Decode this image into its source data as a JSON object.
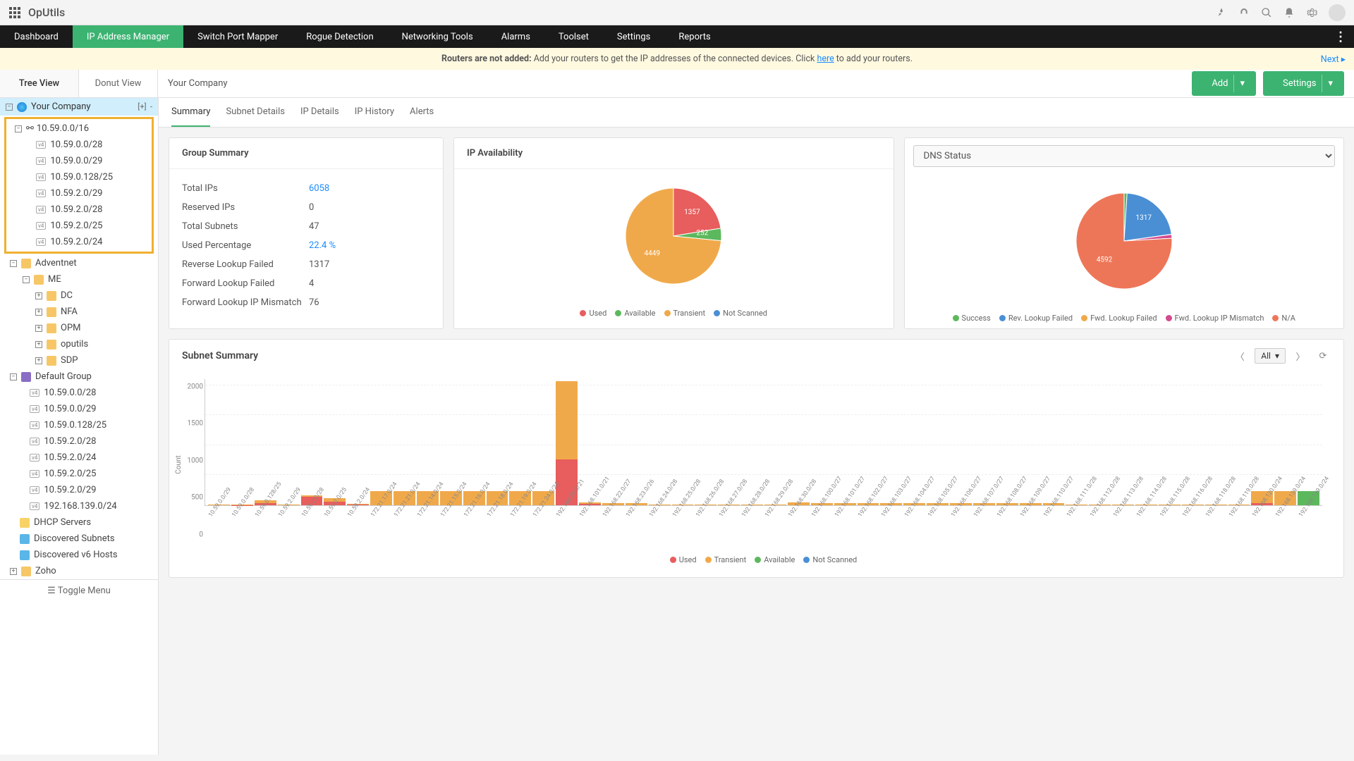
{
  "app": {
    "name": "OpUtils"
  },
  "nav": {
    "items": [
      "Dashboard",
      "IP Address Manager",
      "Switch Port Mapper",
      "Rogue Detection",
      "Networking Tools",
      "Alarms",
      "Toolset",
      "Settings",
      "Reports"
    ],
    "active": 1
  },
  "alert": {
    "bold": "Routers are not added:",
    "text": " Add your routers to get the IP addresses of the connected devices. Click ",
    "link": "here",
    "tail": " to add your routers.",
    "next": "Next"
  },
  "views": {
    "tree": "Tree View",
    "donut": "Donut View",
    "active": "tree"
  },
  "breadcrumb": "Your Company",
  "actions": {
    "add": "Add",
    "settings": "Settings"
  },
  "subtabs": {
    "items": [
      "Summary",
      "Subnet Details",
      "IP Details",
      "IP History",
      "Alerts"
    ],
    "active": 0
  },
  "tree": {
    "root": "Your Company",
    "expand": "[+]",
    "collapse": "-",
    "highlighted": {
      "parent": "10.59.0.0/16",
      "children": [
        "10.59.0.0/28",
        "10.59.0.0/29",
        "10.59.0.128/25",
        "10.59.2.0/29",
        "10.59.2.0/28",
        "10.59.2.0/25",
        "10.59.2.0/24"
      ]
    },
    "adventnet": "Adventnet",
    "me": "ME",
    "me_children": [
      "DC",
      "NFA",
      "OPM",
      "oputils",
      "SDP"
    ],
    "default_group": "Default Group",
    "default_children": [
      "10.59.0.0/28",
      "10.59.0.0/29",
      "10.59.0.128/25",
      "10.59.2.0/28",
      "10.59.2.0/24",
      "10.59.2.0/25",
      "10.59.2.0/29",
      "192.168.139.0/24"
    ],
    "dhcp": "DHCP Servers",
    "disc_subnets": "Discovered Subnets",
    "disc_v6": "Discovered v6 Hosts",
    "zoho": "Zoho",
    "toggle": "Toggle Menu"
  },
  "group_summary": {
    "title": "Group Summary",
    "rows": [
      {
        "k": "Total IPs",
        "v": "6058",
        "link": true
      },
      {
        "k": "Reserved IPs",
        "v": "0"
      },
      {
        "k": "Total Subnets",
        "v": "47"
      },
      {
        "k": "Used Percentage",
        "v": "22.4 %",
        "link": true
      },
      {
        "k": "Reverse Lookup Failed",
        "v": "1317"
      },
      {
        "k": "Forward Lookup Failed",
        "v": "4"
      },
      {
        "k": "Forward Lookup IP Mismatch",
        "v": "76"
      }
    ]
  },
  "ip_avail": {
    "title": "IP Availability",
    "data": [
      {
        "label": "Used",
        "value": 1357,
        "color": "#e85d5d"
      },
      {
        "label": "Available",
        "value": 252,
        "color": "#5cb85c"
      },
      {
        "label": "Transient",
        "value": 4449,
        "color": "#f0a94a"
      },
      {
        "label": "Not Scanned",
        "value": 0,
        "color": "#4a8fd4"
      }
    ]
  },
  "dns": {
    "title": "DNS Status",
    "data": [
      {
        "label": "Success",
        "value": 60,
        "color": "#5cb85c"
      },
      {
        "label": "Rev. Lookup Failed",
        "value": 1317,
        "color": "#4a8fd4"
      },
      {
        "label": "Fwd. Lookup Failed",
        "value": 4,
        "color": "#f0a94a"
      },
      {
        "label": "Fwd. Lookup IP Mismatch",
        "value": 76,
        "color": "#d44a8f"
      },
      {
        "label": "N/A",
        "value": 4592,
        "color": "#ee7658"
      }
    ]
  },
  "subnet_summary": {
    "title": "Subnet Summary",
    "filter": "All",
    "ylabel": "Count",
    "ymax": 2100,
    "yticks": [
      0,
      500,
      1000,
      1500,
      2000
    ],
    "colors": {
      "used": "#e85d5d",
      "transient": "#f0a94a",
      "available": "#5cb85c",
      "not_scanned": "#4a8fd4"
    },
    "legend": [
      "Used",
      "Transient",
      "Available",
      "Not Scanned"
    ],
    "bars": [
      {
        "x": "10.59.0.0/29",
        "used": 0,
        "trans": 8,
        "avail": 0
      },
      {
        "x": "10.59.0.0/28",
        "used": 5,
        "trans": 10,
        "avail": 0
      },
      {
        "x": "10.59.0.128/25",
        "used": 35,
        "trans": 50,
        "avail": 0
      },
      {
        "x": "10.59.2.0/29",
        "used": 0,
        "trans": 8,
        "avail": 0
      },
      {
        "x": "10.59.2.0/28",
        "used": 140,
        "trans": 30,
        "avail": 0
      },
      {
        "x": "10.59.2.0/25",
        "used": 60,
        "trans": 60,
        "avail": 0
      },
      {
        "x": "10.59.2.0/24",
        "used": 10,
        "trans": 10,
        "avail": 0
      },
      {
        "x": "172.21.17.0/24",
        "used": 0,
        "trans": 230,
        "avail": 0
      },
      {
        "x": "172.21.21.0/24",
        "used": 0,
        "trans": 230,
        "avail": 0
      },
      {
        "x": "172.21.14.0/24",
        "used": 0,
        "trans": 230,
        "avail": 0
      },
      {
        "x": "172.21.15.0/24",
        "used": 0,
        "trans": 230,
        "avail": 0
      },
      {
        "x": "172.21.16.0/24",
        "used": 0,
        "trans": 230,
        "avail": 0
      },
      {
        "x": "172.21.18.0/24",
        "used": 0,
        "trans": 230,
        "avail": 0
      },
      {
        "x": "172.21.19.0/24",
        "used": 0,
        "trans": 230,
        "avail": 0
      },
      {
        "x": "172.21.24.0/24",
        "used": 0,
        "trans": 230,
        "avail": 0
      },
      {
        "x": "192.168.20.0/21",
        "used": 760,
        "trans": 1300,
        "avail": 0
      },
      {
        "x": "192.168.101.0/21",
        "used": 25,
        "trans": 20,
        "avail": 0
      },
      {
        "x": "192.168.22.0/27",
        "used": 0,
        "trans": 30,
        "avail": 0
      },
      {
        "x": "192.168.23.0/26",
        "used": 0,
        "trans": 35,
        "avail": 0
      },
      {
        "x": "192.168.24.0/28",
        "used": 0,
        "trans": 15,
        "avail": 0
      },
      {
        "x": "192.168.25.0/28",
        "used": 0,
        "trans": 15,
        "avail": 0
      },
      {
        "x": "192.168.26.0/28",
        "used": 0,
        "trans": 15,
        "avail": 0
      },
      {
        "x": "192.168.27.0/28",
        "used": 0,
        "trans": 15,
        "avail": 0
      },
      {
        "x": "192.168.28.0/28",
        "used": 0,
        "trans": 15,
        "avail": 0
      },
      {
        "x": "192.168.29.0/28",
        "used": 0,
        "trans": 15,
        "avail": 0
      },
      {
        "x": "192.168.30.0/28",
        "used": 0,
        "trans": 45,
        "avail": 0
      },
      {
        "x": "192.168.100.0/27",
        "used": 0,
        "trans": 30,
        "avail": 0
      },
      {
        "x": "192.168.101.0/27",
        "used": 0,
        "trans": 30,
        "avail": 0
      },
      {
        "x": "192.168.102.0/27",
        "used": 0,
        "trans": 30,
        "avail": 0
      },
      {
        "x": "192.168.103.0/27",
        "used": 0,
        "trans": 30,
        "avail": 0
      },
      {
        "x": "192.168.104.0/27",
        "used": 0,
        "trans": 30,
        "avail": 0
      },
      {
        "x": "192.168.105.0/27",
        "used": 0,
        "trans": 30,
        "avail": 0
      },
      {
        "x": "192.168.106.0/27",
        "used": 0,
        "trans": 30,
        "avail": 0
      },
      {
        "x": "192.168.107.0/27",
        "used": 0,
        "trans": 30,
        "avail": 0
      },
      {
        "x": "192.168.108.0/27",
        "used": 0,
        "trans": 30,
        "avail": 0
      },
      {
        "x": "192.168.109.0/27",
        "used": 0,
        "trans": 30,
        "avail": 0
      },
      {
        "x": "192.168.110.0/27",
        "used": 0,
        "trans": 30,
        "avail": 0
      },
      {
        "x": "192.168.111.0/28",
        "used": 0,
        "trans": 15,
        "avail": 0
      },
      {
        "x": "192.168.112.0/28",
        "used": 0,
        "trans": 15,
        "avail": 0
      },
      {
        "x": "192.168.113.0/28",
        "used": 0,
        "trans": 15,
        "avail": 0
      },
      {
        "x": "192.168.114.0/28",
        "used": 0,
        "trans": 15,
        "avail": 0
      },
      {
        "x": "192.168.115.0/28",
        "used": 0,
        "trans": 15,
        "avail": 0
      },
      {
        "x": "192.168.116.0/28",
        "used": 0,
        "trans": 15,
        "avail": 0
      },
      {
        "x": "192.168.118.0/28",
        "used": 0,
        "trans": 15,
        "avail": 0
      },
      {
        "x": "192.168.119.0/28",
        "used": 0,
        "trans": 15,
        "avail": 0
      },
      {
        "x": "192.168.120.0/24",
        "used": 30,
        "trans": 200,
        "avail": 0
      },
      {
        "x": "192.168.139.0/24",
        "used": 0,
        "trans": 230,
        "avail": 0
      },
      {
        "x": "192.168.139.0/24",
        "used": 0,
        "trans": 0,
        "avail": 230
      }
    ]
  }
}
